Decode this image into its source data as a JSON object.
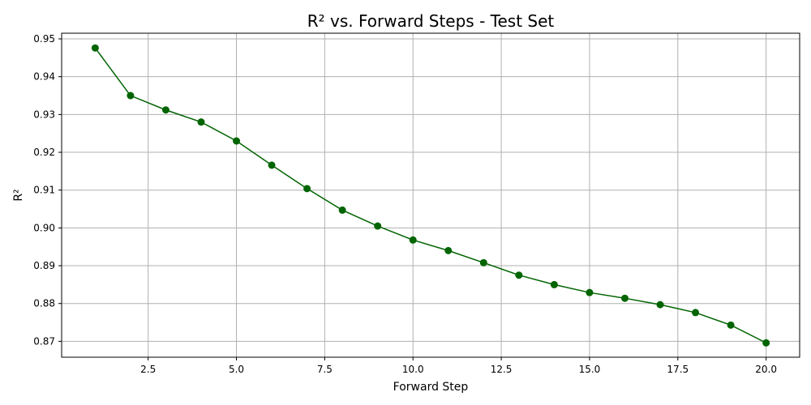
{
  "chart_data": {
    "type": "line",
    "title": "R² vs. Forward Steps - Test Set",
    "xlabel": "Forward Step",
    "ylabel": "R²",
    "xlim": [
      0.05,
      20.95
    ],
    "ylim": [
      0.8658,
      0.9515
    ],
    "x_ticks": [
      2.5,
      5.0,
      7.5,
      10.0,
      12.5,
      15.0,
      17.5,
      20.0
    ],
    "x_tick_labels": [
      "2.5",
      "5.0",
      "7.5",
      "10.0",
      "12.5",
      "15.0",
      "17.5",
      "20.0"
    ],
    "y_ticks": [
      0.87,
      0.88,
      0.89,
      0.9,
      0.91,
      0.92,
      0.93,
      0.94,
      0.95
    ],
    "y_tick_labels": [
      "0.87",
      "0.88",
      "0.89",
      "0.90",
      "0.91",
      "0.92",
      "0.93",
      "0.94",
      "0.95"
    ],
    "grid": true,
    "legend": "none",
    "series": [
      {
        "color": "#006400",
        "marker": "circle",
        "x": [
          1,
          2,
          3,
          4,
          5,
          6,
          7,
          8,
          9,
          10,
          11,
          12,
          13,
          14,
          15,
          16,
          17,
          18,
          19,
          20
        ],
        "y": [
          0.9476,
          0.935,
          0.9312,
          0.928,
          0.923,
          0.9166,
          0.9104,
          0.9047,
          0.9005,
          0.8968,
          0.894,
          0.8908,
          0.8875,
          0.885,
          0.8829,
          0.8814,
          0.8797,
          0.8776,
          0.8743,
          0.8696
        ]
      }
    ]
  }
}
